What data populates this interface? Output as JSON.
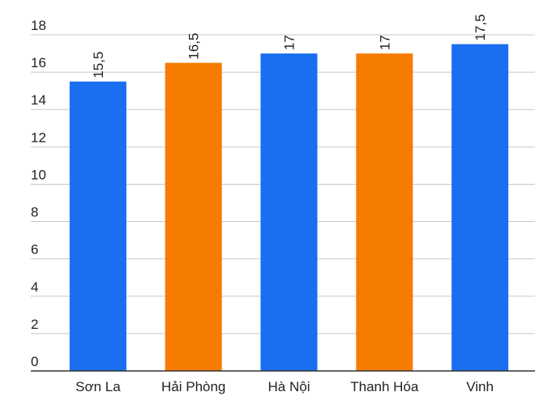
{
  "chart_data": {
    "type": "bar",
    "categories": [
      "Sơn La",
      "Hải Phòng",
      "Hà Nội",
      "Thanh Hóa",
      "Vinh"
    ],
    "values": [
      15.5,
      16.5,
      17,
      17,
      17.5
    ],
    "value_labels": [
      "15,5",
      "16,5",
      "17",
      "17",
      "17,5"
    ],
    "colors": [
      "#1a6ef0",
      "#f57c00",
      "#1a6ef0",
      "#f57c00",
      "#1a6ef0"
    ],
    "ylim": [
      0,
      18
    ],
    "yticks": [
      0,
      2,
      4,
      6,
      8,
      10,
      12,
      14,
      16,
      18
    ],
    "grid": true
  }
}
